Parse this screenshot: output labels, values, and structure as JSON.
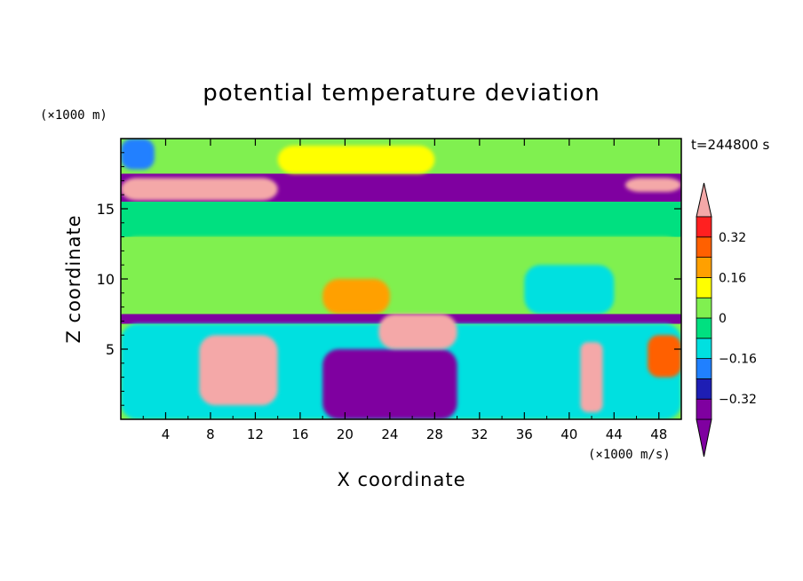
{
  "chart_data": {
    "type": "heatmap",
    "title": "potential temperature deviation",
    "xlabel": "X coordinate",
    "ylabel": "Z coordinate",
    "x_unit_label": "(×1000 m/s)",
    "y_unit_label": "(×1000 m)",
    "time_label": "t=244800 s",
    "xlim": [
      0,
      50
    ],
    "ylim": [
      0,
      20
    ],
    "x_ticks": [
      "4",
      "8",
      "12",
      "16",
      "20",
      "24",
      "28",
      "32",
      "36",
      "40",
      "44",
      "48"
    ],
    "x_tick_values": [
      4,
      8,
      12,
      16,
      20,
      24,
      28,
      32,
      36,
      40,
      44,
      48
    ],
    "y_ticks": [
      "5",
      "10",
      "15"
    ],
    "y_tick_values": [
      5,
      10,
      15
    ],
    "colorbar": {
      "labels": [
        "0.32",
        "0.16",
        "0",
        "−0.16",
        "−0.32"
      ],
      "label_values": [
        0.32,
        0.16,
        0,
        -0.16,
        -0.32
      ],
      "levels": [
        -0.4,
        -0.32,
        -0.24,
        -0.16,
        -0.08,
        0,
        0.08,
        0.16,
        0.24,
        0.32,
        0.4
      ],
      "colors": [
        "#7f00a0",
        "#1e1eb4",
        "#2080ff",
        "#00e0e0",
        "#00e080",
        "#80f050",
        "#ffff00",
        "#ffa000",
        "#ff6000",
        "#ff2020"
      ],
      "under_color": "#7f00a0",
      "over_color": "#f4a8a8"
    },
    "regions": [
      {
        "x": [
          0,
          50
        ],
        "z": [
          15.5,
          17.5
        ],
        "value": -0.45
      },
      {
        "x": [
          0,
          14
        ],
        "z": [
          15.6,
          17.2
        ],
        "value": 0.45
      },
      {
        "x": [
          45,
          50
        ],
        "z": [
          16.2,
          17.2
        ],
        "value": 0.45
      },
      {
        "x": [
          0,
          50
        ],
        "z": [
          17.5,
          20
        ],
        "value": 0.0
      },
      {
        "x": [
          0,
          3
        ],
        "z": [
          17.8,
          20
        ],
        "value": -0.2
      },
      {
        "x": [
          14,
          28
        ],
        "z": [
          17.5,
          19.5
        ],
        "value": 0.1
      },
      {
        "x": [
          0,
          50
        ],
        "z": [
          13,
          15.5
        ],
        "value": -0.05
      },
      {
        "x": [
          0,
          50
        ],
        "z": [
          7,
          13
        ],
        "value": 0.05
      },
      {
        "x": [
          18,
          24
        ],
        "z": [
          7.5,
          10
        ],
        "value": 0.2
      },
      {
        "x": [
          36,
          44
        ],
        "z": [
          7.5,
          11
        ],
        "value": -0.1
      },
      {
        "x": [
          0,
          50
        ],
        "z": [
          6.8,
          7.5
        ],
        "value": -0.45
      },
      {
        "x": [
          0,
          50
        ],
        "z": [
          0,
          6.8
        ],
        "value": -0.1
      },
      {
        "x": [
          7,
          14
        ],
        "z": [
          1,
          6
        ],
        "value": 0.45
      },
      {
        "x": [
          18,
          30
        ],
        "z": [
          0,
          5
        ],
        "value": -0.45
      },
      {
        "x": [
          23,
          30
        ],
        "z": [
          5,
          7.5
        ],
        "value": 0.45
      },
      {
        "x": [
          41,
          43
        ],
        "z": [
          0.5,
          5.5
        ],
        "value": 0.45
      },
      {
        "x": [
          47,
          50
        ],
        "z": [
          3,
          6
        ],
        "value": 0.3
      }
    ]
  }
}
